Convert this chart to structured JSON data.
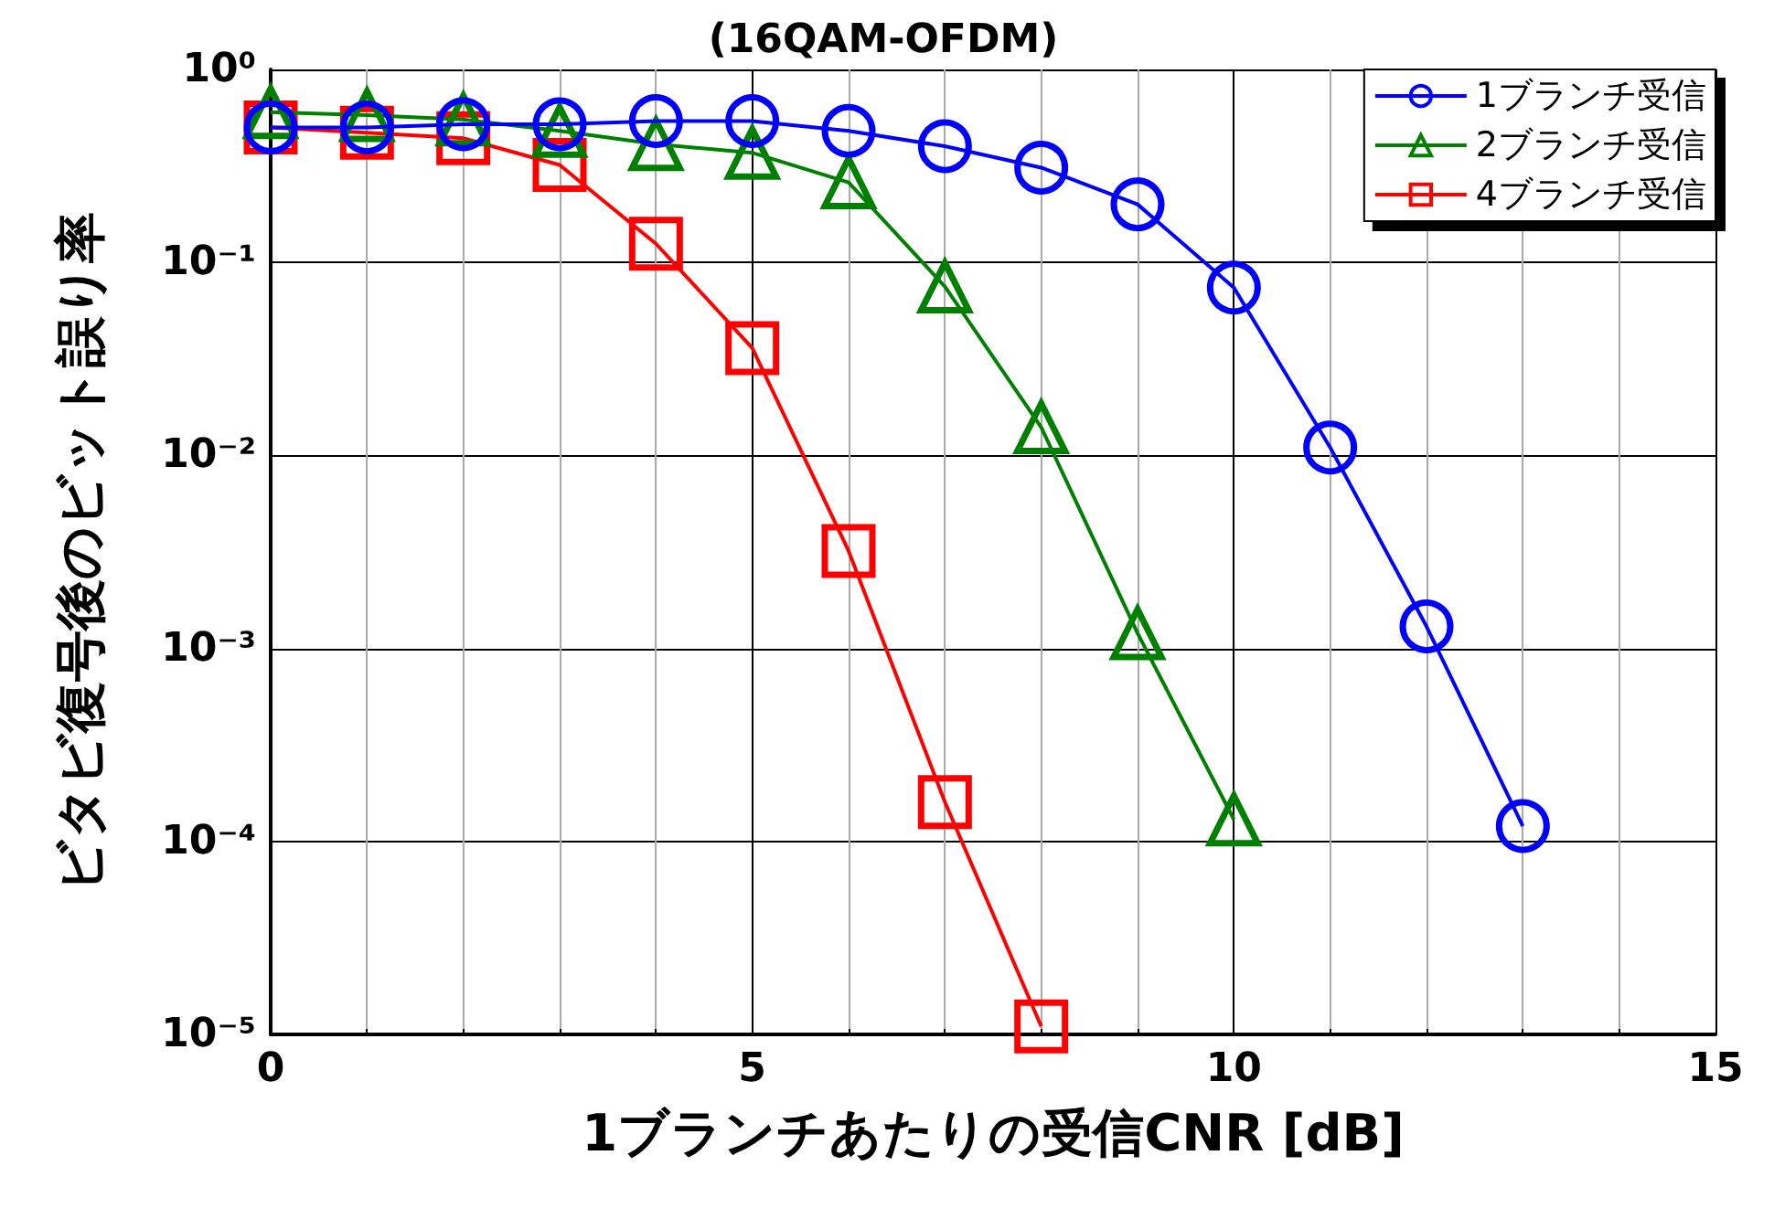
{
  "chart_data": {
    "type": "line",
    "title": "(16QAM-OFDM)",
    "xlabel": "1ブランチあたりの受信CNR [dB]",
    "ylabel": "ビタビ復号後のビット誤り率",
    "x": [
      0,
      1,
      2,
      3,
      4,
      5,
      6,
      7,
      8,
      9,
      10,
      11,
      12,
      13
    ],
    "series": [
      {
        "name": "1ブランチ受信",
        "color": "#0000ff",
        "marker": "circle",
        "values": [
          0.5,
          0.5,
          0.52,
          0.52,
          0.54,
          0.54,
          0.48,
          0.4,
          0.31,
          0.2,
          0.074,
          0.011,
          0.0013,
          0.00012
        ]
      },
      {
        "name": "2ブランチ受信",
        "color": "#008000",
        "marker": "triangle",
        "values": [
          0.6,
          0.58,
          0.55,
          0.48,
          0.41,
          0.37,
          0.26,
          0.075,
          0.014,
          0.0012,
          0.00013,
          null,
          null,
          null
        ]
      },
      {
        "name": "4ブランチ受信",
        "color": "#ff0000",
        "marker": "square",
        "values": [
          0.5,
          0.47,
          0.44,
          0.32,
          0.125,
          0.036,
          0.0032,
          0.00016,
          1.1e-05,
          null,
          null,
          null,
          null,
          null
        ]
      }
    ],
    "xlim": [
      0,
      15
    ],
    "xticks": [
      0,
      5,
      10,
      15
    ],
    "ylim": [
      1e-05,
      1
    ],
    "yticks": [
      {
        "value": 1e-05,
        "label": "10⁻⁵"
      },
      {
        "value": 0.0001,
        "label": "10⁻⁴"
      },
      {
        "value": 0.001,
        "label": "10⁻³"
      },
      {
        "value": 0.01,
        "label": "10⁻²"
      },
      {
        "value": 0.1,
        "label": "10⁻¹"
      },
      {
        "value": 1,
        "label": "10⁰"
      }
    ],
    "log": "y",
    "grid": true,
    "legend": "top right",
    "line_style": "solid"
  }
}
